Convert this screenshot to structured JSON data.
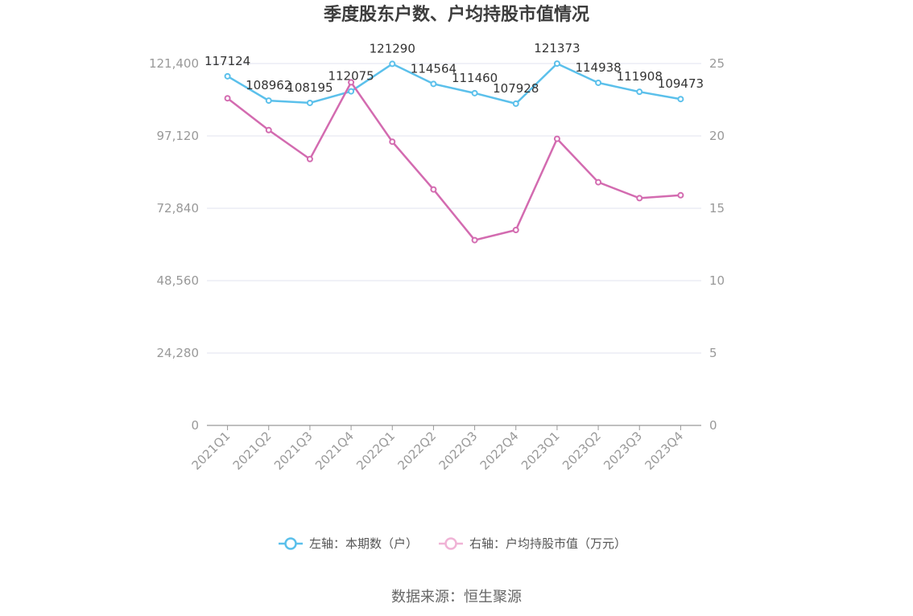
{
  "chart_data": {
    "type": "line",
    "title": "季度股东户数、户均持股市值情况",
    "categories": [
      "2021Q1",
      "2021Q2",
      "2021Q3",
      "2021Q4",
      "2022Q1",
      "2022Q2",
      "2022Q3",
      "2022Q4",
      "2023Q1",
      "2023Q2",
      "2023Q3",
      "2023Q4"
    ],
    "series": [
      {
        "name": "左轴：本期数（户）",
        "axis": "left",
        "color": "#5bc0eb",
        "values": [
          117124,
          108962,
          108195,
          112075,
          121290,
          114564,
          111460,
          107928,
          121373,
          114938,
          111908,
          109473
        ],
        "labels": [
          "117124",
          "108962",
          "108195",
          "112075",
          "121290",
          "114564",
          "111460",
          "107928",
          "121373",
          "114938",
          "111908",
          "109473"
        ]
      },
      {
        "name": "右轴：户均持股市值（万元）",
        "axis": "right",
        "color": "#d36bb0",
        "values": [
          22.6,
          20.4,
          18.4,
          23.7,
          19.6,
          16.3,
          12.8,
          13.5,
          19.8,
          16.8,
          15.7,
          15.9
        ]
      }
    ],
    "y_left": {
      "ylim": [
        0,
        121400
      ],
      "ticks": [
        "0",
        "24,280",
        "48,560",
        "72,840",
        "97,120",
        "121,400"
      ],
      "tick_values": [
        0,
        24280,
        48560,
        72840,
        97120,
        121400
      ]
    },
    "y_right": {
      "ylim": [
        0,
        25
      ],
      "ticks": [
        "0",
        "5",
        "10",
        "15",
        "20",
        "25"
      ],
      "tick_values": [
        0,
        5,
        10,
        15,
        20,
        25
      ]
    },
    "legend_position": "bottom",
    "grid": true
  },
  "source": "数据来源：恒生聚源"
}
